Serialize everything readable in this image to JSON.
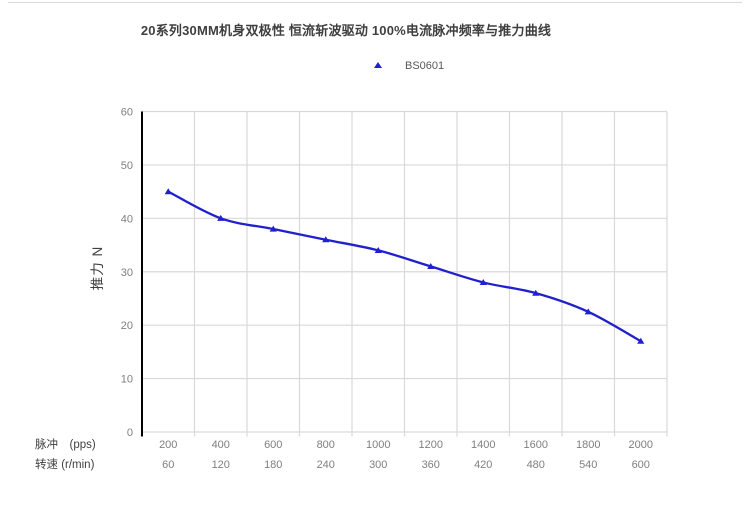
{
  "chart_data": {
    "type": "line",
    "title": "20系列30MM机身双极性 恒流斩波驱动 100%电流脉冲频率与推力曲线",
    "ylabel": "推力 N",
    "ylim": [
      0,
      60
    ],
    "y_ticks": [
      0,
      10,
      20,
      30,
      40,
      50,
      60
    ],
    "categories": [
      200,
      400,
      600,
      800,
      1000,
      1200,
      1400,
      1600,
      1800,
      2000
    ],
    "x_axis_rows": [
      {
        "label": "脉冲　(pps)",
        "ticks": [
          "200",
          "400",
          "600",
          "800",
          "1000",
          "1200",
          "1400",
          "1600",
          "1800",
          "2000"
        ]
      },
      {
        "label": "转速 (r/min)",
        "ticks": [
          "60",
          "120",
          "180",
          "240",
          "300",
          "360",
          "420",
          "480",
          "540",
          "600"
        ]
      }
    ],
    "series": [
      {
        "name": "BS0601",
        "color": "#2020cd",
        "marker": "triangle",
        "values": [
          45,
          40,
          38,
          36,
          34,
          31,
          28,
          26,
          22.5,
          17
        ]
      }
    ],
    "legend": {
      "label": "BS0601",
      "position": "top-center"
    },
    "grid": true,
    "styles": {
      "grid_color": "#d9d9d9",
      "axis_color": "#000000",
      "tick_label_color": "#7f7f7f",
      "title_color": "#3f3f3f",
      "legend_label_color": "#595959",
      "axis_title_color": "#404040"
    }
  }
}
